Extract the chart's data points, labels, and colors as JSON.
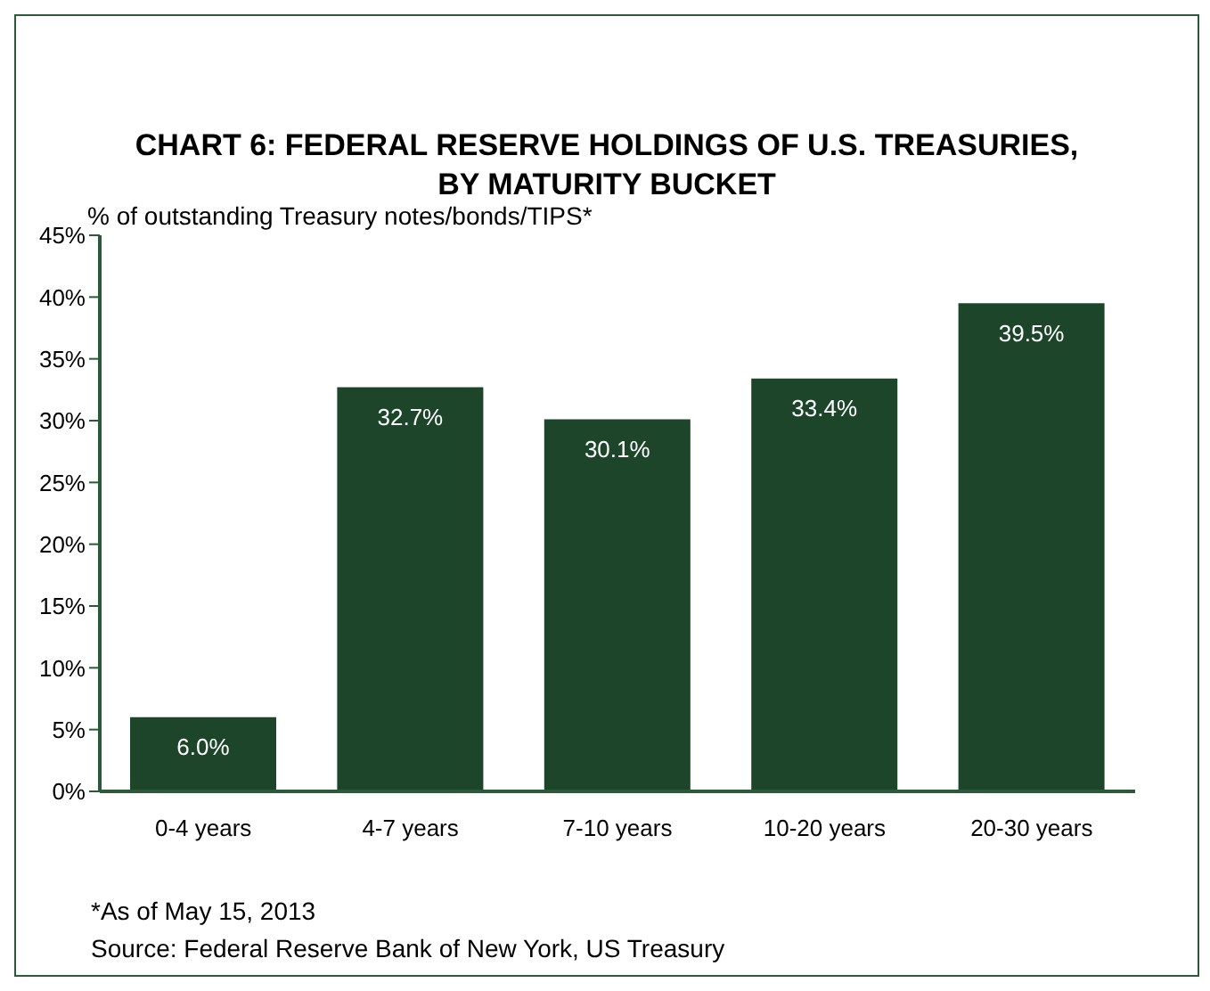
{
  "chart_data": {
    "type": "bar",
    "title": "CHART 6: FEDERAL RESERVE HOLDINGS OF U.S. TREASURIES, BY MATURITY BUCKET",
    "ylabel": "% of outstanding Treasury notes/bonds/TIPS*",
    "categories": [
      "0-4 years",
      "4-7 years",
      "7-10 years",
      "10-20 years",
      "20-30 years"
    ],
    "values": [
      6.0,
      32.7,
      30.1,
      33.4,
      39.5
    ],
    "value_labels": [
      "6.0%",
      "32.7%",
      "30.1%",
      "33.4%",
      "39.5%"
    ],
    "color": "#1d4529",
    "ylim": [
      0,
      45
    ],
    "yticks": [
      {
        "value": 0,
        "label": "0%"
      },
      {
        "value": 5,
        "label": "5%"
      },
      {
        "value": 10,
        "label": "10%"
      },
      {
        "value": 15,
        "label": "15%"
      },
      {
        "value": 20,
        "label": "20%"
      },
      {
        "value": 25,
        "label": "25%"
      },
      {
        "value": 30,
        "label": "30%"
      },
      {
        "value": 35,
        "label": "35%"
      },
      {
        "value": 40,
        "label": "40%"
      },
      {
        "value": 45,
        "label": "45%"
      }
    ],
    "grid": false,
    "legend": false,
    "annotations": [
      "*As of May 15, 2013",
      "Source: Federal Reserve Bank of New York, US Treasury"
    ]
  }
}
